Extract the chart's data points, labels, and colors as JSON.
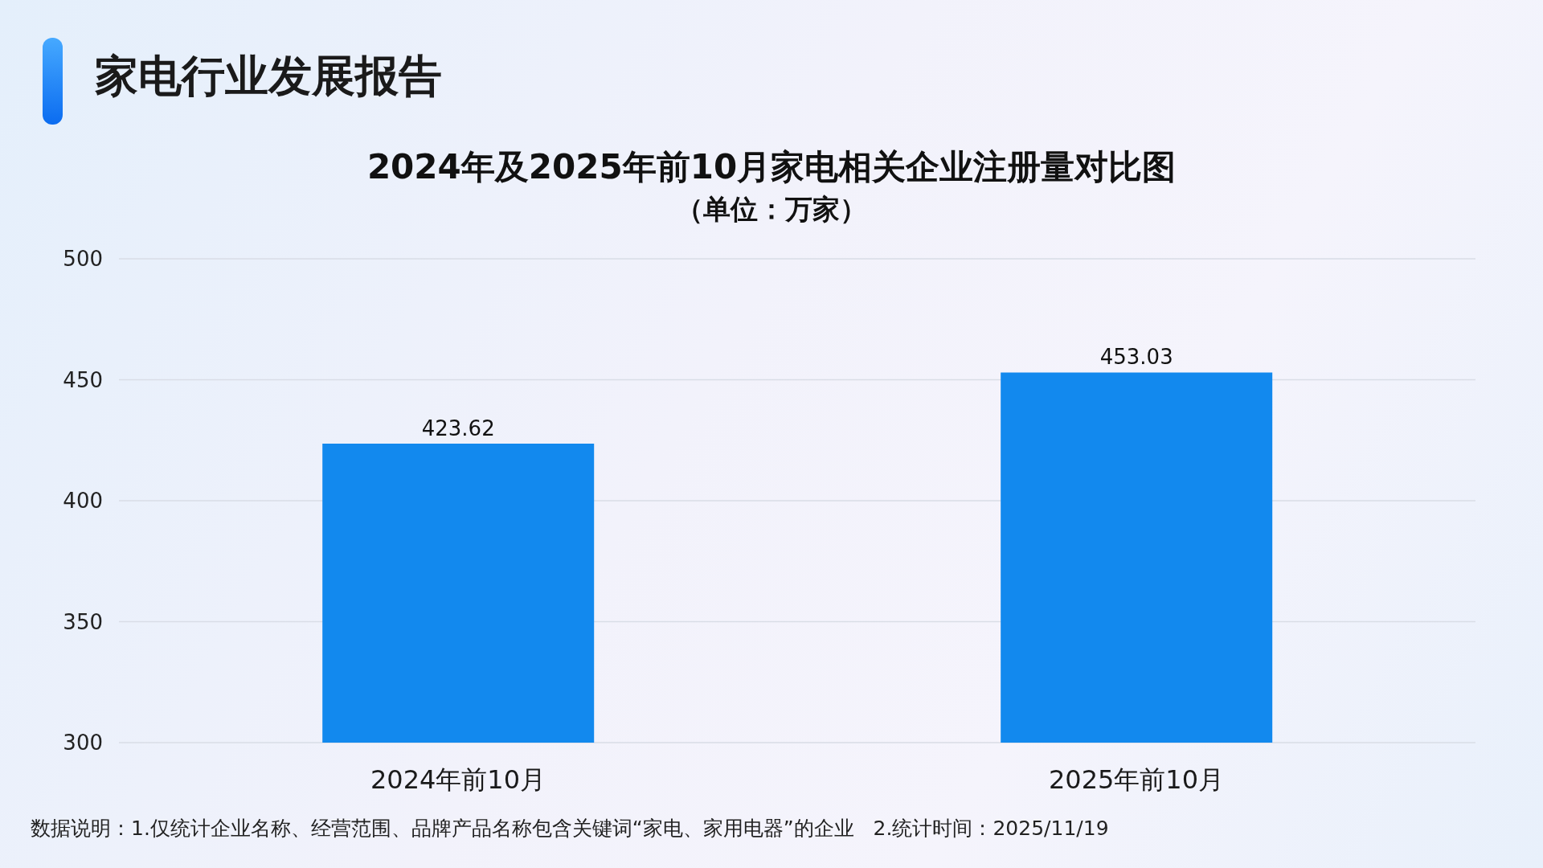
{
  "chart_data": {
    "type": "bar",
    "title": "2024年及2025年前10月家电相关企业注册量对比图",
    "subtitle": "（单位：万家）",
    "categories": [
      "2024年前10月",
      "2025年前10月"
    ],
    "values": [
      423.62,
      453.03
    ],
    "color": "#1289ee",
    "ylim": [
      300,
      500
    ],
    "yticks": [
      300,
      350,
      400,
      450,
      500
    ],
    "grid": "y",
    "data_labels": true,
    "annotations": [
      "家电行业发展报告",
      "数据说明：1.仅统计企业名称、经营范围、品牌产品名称包含关键词“家电、家用电器”的企业   2.统计时间：2025/11/19"
    ]
  }
}
